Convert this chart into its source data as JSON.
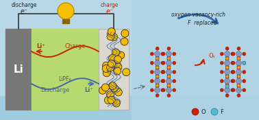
{
  "bg_color": "#b8d8e8",
  "battery_bg": "#c8e0ec",
  "li_color": "#777777",
  "electrolyte_color": "#b8d870",
  "cathode_color": "#d8d8cc",
  "wire_color": "#333333",
  "bulb_color": "#f5c000",
  "bulb_base": "#886600",
  "charge_color": "#cc2200",
  "discharge_color": "#4466aa",
  "li_label": "Li",
  "lipf6_label": "LiPF₆",
  "charge_label": "Charge",
  "discharge_label": "Discharge",
  "li_plus_top": "Li⁺",
  "li_plus_bot": "Li⁺",
  "discharge_text": "discharge",
  "e_minus": "e⁻",
  "charge_text": "charge",
  "ov_label": "oxygen vacancy-rich",
  "f_replaced": "F  replaced",
  "ov_symbol": "Oᵥ",
  "legend_o": "O",
  "legend_f": "F",
  "o_color": "#cc2200",
  "f_color": "#55bbcc",
  "fe_color": "#8899bb",
  "ca_color": "#ddaa22",
  "right_panel_bg": "#b0d4e4",
  "arrow_blue": "#3366aa",
  "arrow_red": "#cc2200",
  "particle_yellow": "#f5bb00",
  "particle_outline": "#111111",
  "carbon_line": "#3355aa"
}
